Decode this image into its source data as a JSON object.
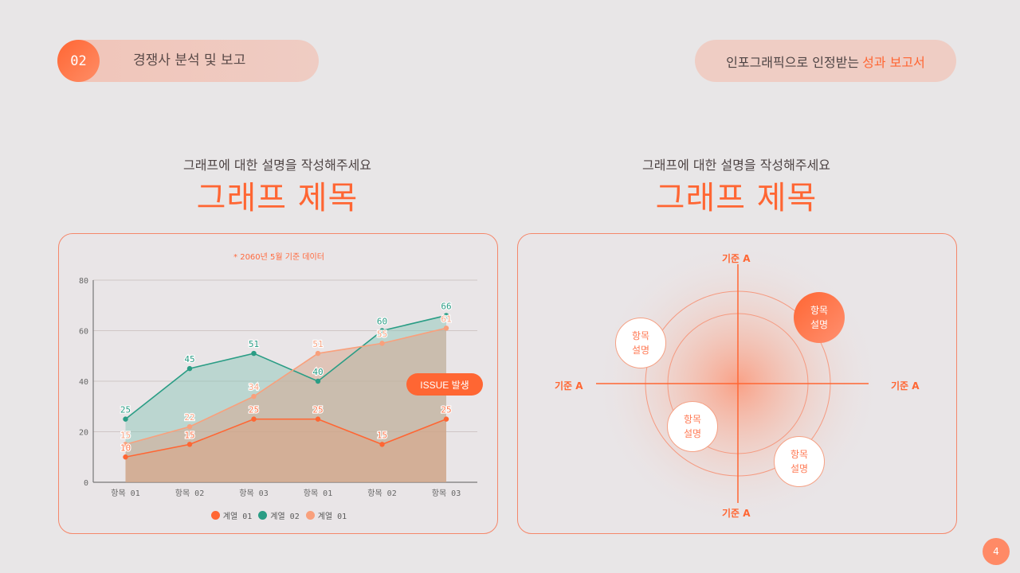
{
  "header": {
    "section_number": "02",
    "section_title": "경쟁사 분석 및 보고",
    "tagline_prefix": "인포그래픽으로 인정받는",
    "tagline_accent": "성과 보고서"
  },
  "left_panel": {
    "subtitle": "그래프에 대한 설명을 작성해주세요",
    "title": "그래프 제목",
    "note": "* 2060년 5월 기준 데이터",
    "issue_label": "ISSUE 발생",
    "legend": [
      {
        "label": "계열 01",
        "color": "#ff6633"
      },
      {
        "label": "계열 02",
        "color": "#2a9d85"
      },
      {
        "label": "계열 01",
        "color": "#f9a07c"
      }
    ]
  },
  "right_panel": {
    "subtitle": "그래프에 대한 설명을 작성해주세요",
    "title": "그래프 제목",
    "axis_top": "기준 A",
    "axis_bottom": "기준 A",
    "axis_left": "기준 A",
    "axis_right": "기준 A",
    "bubbles": [
      {
        "line1": "항목",
        "line2": "설명"
      },
      {
        "line1": "항목",
        "line2": "설명"
      },
      {
        "line1": "항목",
        "line2": "설명"
      },
      {
        "line1": "항목",
        "line2": "설명"
      }
    ]
  },
  "page_number": "4",
  "colors": {
    "accent": "#ff6633",
    "teal": "#2a9d85",
    "peach": "#f9a07c",
    "background": "#e8e6e7"
  },
  "chart_data": [
    {
      "type": "area",
      "title": "그래프 제목",
      "subtitle": "* 2060년 5월 기준 데이터",
      "categories": [
        "항목 01",
        "항목 02",
        "항목 03",
        "항목 01",
        "항목 02",
        "항목 03"
      ],
      "series": [
        {
          "name": "계열 01",
          "color": "#ff6633",
          "values": [
            10,
            15,
            25,
            25,
            15,
            25
          ]
        },
        {
          "name": "계열 02",
          "color": "#2a9d85",
          "values": [
            25,
            45,
            51,
            40,
            60,
            66
          ]
        },
        {
          "name": "계열 01",
          "color": "#f9a07c",
          "values": [
            15,
            22,
            34,
            51,
            55,
            61
          ]
        }
      ],
      "yticks": [
        0,
        20,
        40,
        60,
        80
      ],
      "ylim": [
        0,
        80
      ],
      "grid": true,
      "legend_position": "bottom",
      "annotations": [
        "ISSUE 발생"
      ]
    },
    {
      "type": "scatter",
      "title": "그래프 제목",
      "xlabel": "기준 A",
      "ylabel": "기준 A",
      "points": [
        {
          "label": "항목 설명",
          "quadrant": "top-left"
        },
        {
          "label": "항목 설명",
          "quadrant": "top-right",
          "highlight": true
        },
        {
          "label": "항목 설명",
          "quadrant": "bottom-left"
        },
        {
          "label": "항목 설명",
          "quadrant": "bottom-right"
        }
      ]
    }
  ]
}
